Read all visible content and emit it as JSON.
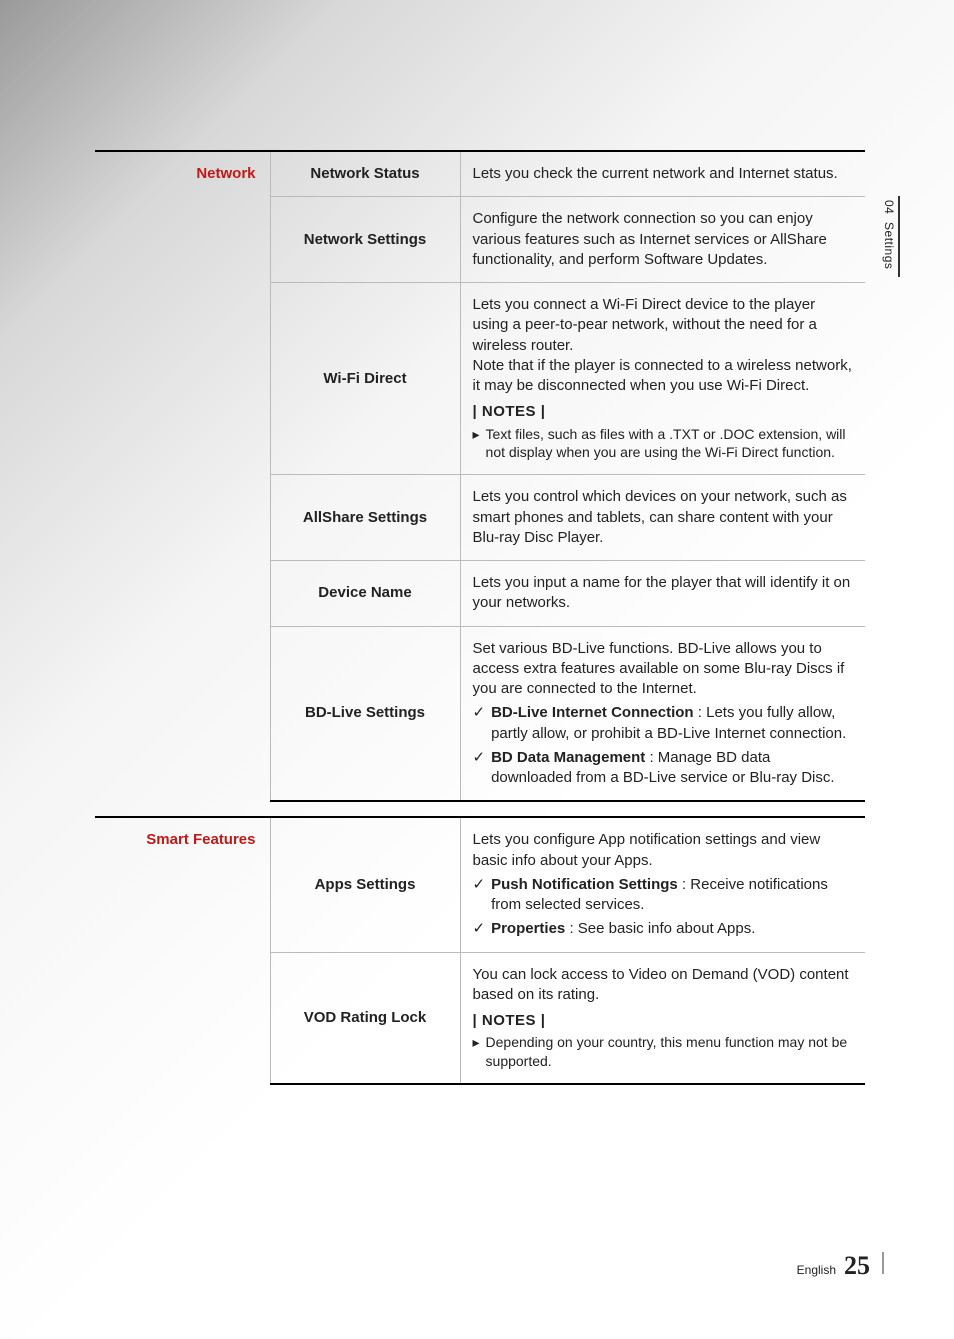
{
  "side": {
    "chapter_num": "04",
    "chapter_label": "Settings"
  },
  "footer": {
    "language": "English",
    "page_number": "25"
  },
  "network": {
    "category": "Network",
    "rows": [
      {
        "item": "Network Status",
        "desc": "Lets you check the current network and Internet status."
      },
      {
        "item": "Network Settings",
        "desc": "Configure the network connection so you can enjoy various features such as Internet services or AllShare functionality, and perform Software Updates."
      },
      {
        "item": "Wi-Fi Direct",
        "desc": "Lets you connect a Wi-Fi Direct device to the player using a peer-to-pear network, without the need for a wireless router.\nNote that if the player is connected to a wireless network, it may be disconnected when you use Wi-Fi Direct.",
        "notes_header": "| NOTES |",
        "notes": [
          "Text files, such as files with a .TXT or .DOC extension, will not display when you are using the Wi-Fi Direct function."
        ]
      },
      {
        "item": "AllShare Settings",
        "desc": "Lets you control which devices on your network, such as smart phones and tablets, can share content with your Blu-ray Disc Player."
      },
      {
        "item": "Device Name",
        "desc": "Lets you input a name for the player that will identify it on your networks."
      },
      {
        "item": "BD-Live Settings",
        "desc": "Set various BD-Live functions. BD-Live allows you to access extra features available on some Blu-ray Discs if you are connected to the Internet.",
        "subs": [
          {
            "lead": "BD-Live Internet Connection",
            "rest": " : Lets you fully allow, partly allow, or prohibit a BD-Live Internet connection."
          },
          {
            "lead": "BD Data Management",
            "rest": " : Manage BD data downloaded from a BD-Live service or Blu-ray Disc."
          }
        ]
      }
    ]
  },
  "smart": {
    "category": "Smart Features",
    "rows": [
      {
        "item": "Apps Settings",
        "desc": "Lets you configure App notification settings and view basic info about your Apps.",
        "subs": [
          {
            "lead": "Push Notification Settings",
            "rest": " : Receive notifications from selected services."
          },
          {
            "lead": "Properties",
            "rest": " : See basic info about Apps."
          }
        ]
      },
      {
        "item": "VOD Rating Lock",
        "desc": "You can lock access to Video on Demand (VOD) content based on its rating.",
        "notes_header": "| NOTES |",
        "notes": [
          "Depending on your country, this menu function may not be supported."
        ]
      }
    ]
  },
  "glyphs": {
    "triangle": "▸",
    "check": "✓"
  }
}
